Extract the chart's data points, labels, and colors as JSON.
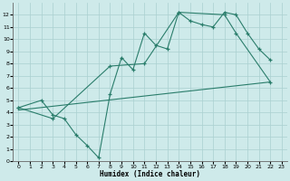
{
  "xlabel": "Humidex (Indice chaleur)",
  "xlim": [
    -0.5,
    23.5
  ],
  "ylim": [
    0,
    13
  ],
  "xticks": [
    0,
    1,
    2,
    3,
    4,
    5,
    6,
    7,
    8,
    9,
    10,
    11,
    12,
    13,
    14,
    15,
    16,
    17,
    18,
    19,
    20,
    21,
    22,
    23
  ],
  "yticks": [
    0,
    1,
    2,
    3,
    4,
    5,
    6,
    7,
    8,
    9,
    10,
    11,
    12
  ],
  "color": "#2a7d6b",
  "bg_color": "#ceeaea",
  "grid_color": "#aad0d0",
  "line1_x": [
    0,
    2,
    3,
    4,
    5,
    6,
    7,
    8,
    9,
    10,
    11,
    12,
    13,
    14,
    15,
    16,
    17,
    18,
    19,
    20,
    21,
    22
  ],
  "line1_y": [
    4.4,
    5.0,
    3.8,
    3.5,
    2.2,
    1.3,
    0.3,
    5.5,
    8.5,
    7.5,
    10.5,
    9.5,
    9.2,
    12.2,
    11.5,
    11.2,
    11.0,
    12.2,
    12.0,
    10.5,
    9.2,
    8.3
  ],
  "line2_x": [
    0,
    3,
    8,
    11,
    14,
    18,
    19,
    22
  ],
  "line2_y": [
    4.4,
    3.5,
    7.8,
    8.0,
    12.2,
    12.0,
    10.5,
    6.5
  ],
  "line3_x": [
    0,
    22
  ],
  "line3_y": [
    4.2,
    6.5
  ]
}
